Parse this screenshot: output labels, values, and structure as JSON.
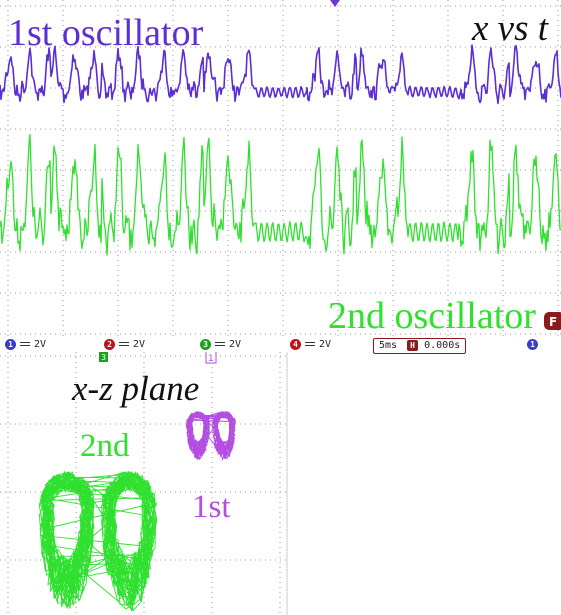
{
  "labels": {
    "osc1": "1st oscillator",
    "osc2": "2nd oscillator",
    "xvt": "x vs t",
    "xz": "x-z plane",
    "second": "2nd",
    "first": "1st"
  },
  "status_bar": {
    "channels": [
      {
        "id": "1",
        "scale": "2V",
        "color": "#3a3acc"
      },
      {
        "id": "2",
        "scale": "2V",
        "color": "#c0101a"
      },
      {
        "id": "3",
        "scale": "2V",
        "color": "#1aa01a"
      },
      {
        "id": "4",
        "scale": "2V",
        "color": "#c0101a"
      }
    ],
    "timebase": "5ms",
    "h_marker": "H",
    "delay": "0.000s",
    "trig_channel": "1",
    "top_right_marker": "F"
  },
  "xy_markers": {
    "ch3": "3",
    "ch1": "1"
  },
  "colors": {
    "osc1": "#5b2fd4",
    "osc2": "#2fe02f",
    "first_xz": "#b24ee0",
    "grid": "#9a9a9a",
    "trig": "#6a3ad0"
  },
  "chart_data": [
    {
      "type": "line",
      "title": "x vs t",
      "xlabel": "",
      "ylabel": "",
      "x_division": "5ms",
      "y_division": "2V",
      "grid": true,
      "series": [
        {
          "name": "1st oscillator",
          "color": "#5b2fd4",
          "segments": [
            "chaotic",
            "chaotic",
            "chaotic",
            "chaotic",
            "chaotic",
            "synchronized",
            "chaotic",
            "chaotic",
            "synchronized",
            "chaotic",
            "chaotic"
          ]
        },
        {
          "name": "2nd oscillator",
          "color": "#2fe02f",
          "segments": [
            "chaotic",
            "chaotic",
            "chaotic",
            "chaotic",
            "chaotic",
            "synchronized",
            "chaotic",
            "chaotic",
            "synchronized",
            "chaotic",
            "chaotic"
          ]
        }
      ]
    },
    {
      "type": "scatter",
      "title": "x-z plane",
      "xlabel": "",
      "ylabel": "",
      "grid": true,
      "series": [
        {
          "name": "2nd",
          "color": "#2fe02f",
          "shape": "double-scroll attractor (large)"
        },
        {
          "name": "1st",
          "color": "#b24ee0",
          "shape": "double-scroll attractor (small)"
        }
      ]
    }
  ]
}
